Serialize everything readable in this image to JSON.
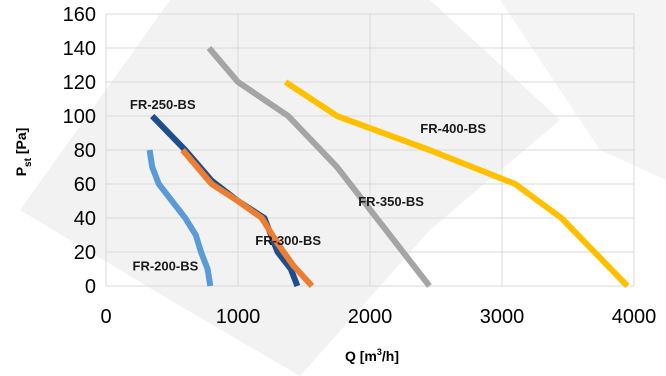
{
  "chart_data": {
    "type": "line",
    "xlabel": "Q [m",
    "xlabel_sup": "3",
    "xlabel_end": "/h]",
    "ylabel": "P",
    "ylabel_sub": "st",
    "ylabel_end": " [Pa]",
    "xlim": [
      0,
      4000
    ],
    "ylim": [
      0,
      160
    ],
    "x_ticks": [
      0,
      1000,
      2000,
      3000,
      4000
    ],
    "y_ticks": [
      0,
      20,
      40,
      60,
      80,
      100,
      120,
      140,
      160
    ],
    "grid": true,
    "legend": "none",
    "series": [
      {
        "name": "FR-200-BS",
        "color": "#5b9bd5",
        "x": [
          330,
          350,
          400,
          500,
          600,
          680,
          720,
          770,
          790
        ],
        "y": [
          80,
          70,
          60,
          50,
          40,
          30,
          20,
          10,
          0
        ]
      },
      {
        "name": "FR-250-BS",
        "color": "#1f4e8c",
        "x": [
          350,
          600,
          800,
          1000,
          1200,
          1250,
          1300,
          1400,
          1450
        ],
        "y": [
          100,
          80,
          62,
          50,
          40,
          30,
          20,
          10,
          0
        ]
      },
      {
        "name": "FR-300-BS",
        "color": "#ed7d31",
        "x": [
          580,
          800,
          1000,
          1180,
          1300,
          1420,
          1560
        ],
        "y": [
          80,
          60,
          50,
          40,
          25,
          12,
          0
        ]
      },
      {
        "name": "FR-350-BS",
        "color": "#a5a5a5",
        "x": [
          780,
          1000,
          1380,
          1750,
          2000,
          2200,
          2350,
          2450
        ],
        "y": [
          140,
          120,
          100,
          70,
          45,
          25,
          10,
          0
        ]
      },
      {
        "name": "FR-400-BS",
        "color": "#ffc000",
        "x": [
          1360,
          1750,
          2450,
          3100,
          3450,
          3700,
          3950
        ],
        "y": [
          120,
          100,
          80,
          60,
          40,
          20,
          0
        ]
      }
    ]
  }
}
